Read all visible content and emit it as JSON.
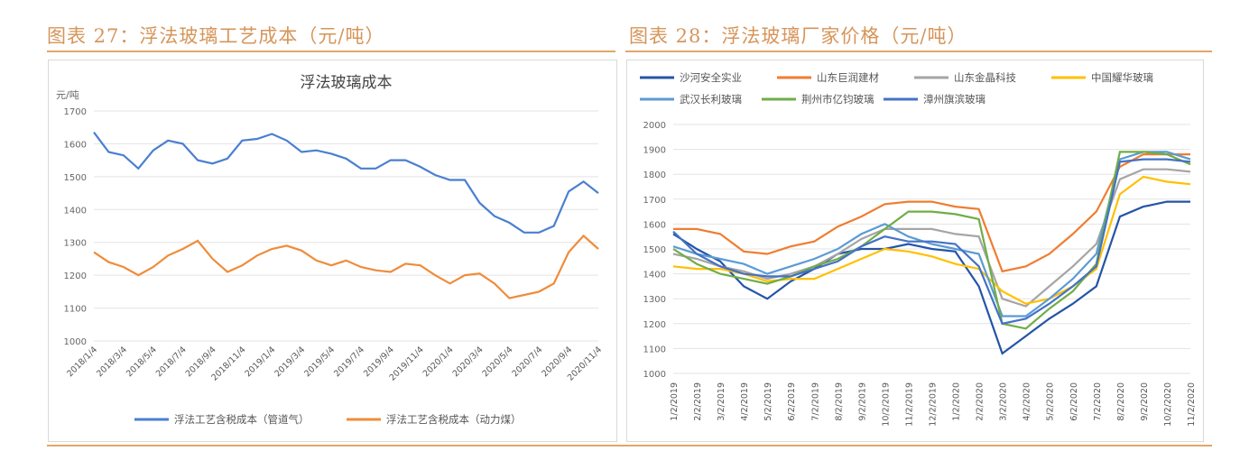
{
  "headers": {
    "left": "图表 27：浮法玻璃工艺成本（元/吨）",
    "right": "图表 28：浮法玻璃厂家价格（元/吨）"
  },
  "colors": {
    "accent": "#d6955a"
  },
  "chart_data": [
    {
      "type": "line",
      "title": "浮法玻璃成本",
      "ylabel": "元/吨",
      "ylim": [
        1000,
        1700
      ],
      "yticks": [
        1000,
        1100,
        1200,
        1300,
        1400,
        1500,
        1600,
        1700
      ],
      "grid": true,
      "legend": "bottom",
      "x": [
        "2018/1/4",
        "2018/2/4",
        "2018/3/4",
        "2018/4/4",
        "2018/5/4",
        "2018/6/4",
        "2018/7/4",
        "2018/8/4",
        "2018/9/4",
        "2018/10/4",
        "2018/11/4",
        "2018/12/4",
        "2019/1/4",
        "2019/2/4",
        "2019/3/4",
        "2019/4/4",
        "2019/5/4",
        "2019/6/4",
        "2019/7/4",
        "2019/8/4",
        "2019/9/4",
        "2019/10/4",
        "2019/11/4",
        "2019/12/4",
        "2020/1/4",
        "2020/2/4",
        "2020/3/4",
        "2020/4/4",
        "2020/5/4",
        "2020/6/4",
        "2020/7/4",
        "2020/8/4",
        "2020/9/4",
        "2020/10/4",
        "2020/11/4"
      ],
      "xtick_labels": [
        "2018/1/4",
        "2018/3/4",
        "2018/5/4",
        "2018/7/4",
        "2018/9/4",
        "2018/11/4",
        "2019/1/4",
        "2019/3/4",
        "2019/5/4",
        "2019/7/4",
        "2019/9/4",
        "2019/11/4",
        "2020/1/4",
        "2020/3/4",
        "2020/5/4",
        "2020/7/4",
        "2020/9/4",
        "2020/11/4"
      ],
      "series": [
        {
          "name": "浮法工艺含税成本（管道气）",
          "color": "#4a7fd0",
          "values": [
            1635,
            1575,
            1565,
            1525,
            1580,
            1610,
            1600,
            1550,
            1540,
            1555,
            1610,
            1615,
            1630,
            1610,
            1575,
            1580,
            1570,
            1555,
            1525,
            1525,
            1550,
            1550,
            1530,
            1505,
            1490,
            1490,
            1420,
            1380,
            1360,
            1330,
            1330,
            1350,
            1455,
            1485,
            1450
          ]
        },
        {
          "name": "浮法工艺含税成本（动力煤）",
          "color": "#ef8c3a",
          "values": [
            1270,
            1240,
            1225,
            1200,
            1225,
            1260,
            1280,
            1305,
            1250,
            1210,
            1230,
            1260,
            1280,
            1290,
            1275,
            1245,
            1230,
            1245,
            1225,
            1215,
            1210,
            1235,
            1230,
            1200,
            1175,
            1200,
            1205,
            1175,
            1130,
            1140,
            1150,
            1175,
            1270,
            1320,
            1280
          ]
        }
      ]
    },
    {
      "type": "line",
      "title": "",
      "ylim": [
        1000,
        2000
      ],
      "yticks": [
        1000,
        1100,
        1200,
        1300,
        1400,
        1500,
        1600,
        1700,
        1800,
        1900,
        2000
      ],
      "grid": true,
      "legend": "top",
      "x": [
        "1/2/2019",
        "2/2/2019",
        "3/2/2019",
        "4/2/2019",
        "5/2/2019",
        "6/2/2019",
        "7/2/2019",
        "8/2/2019",
        "9/2/2019",
        "10/2/2019",
        "11/2/2019",
        "12/2/2019",
        "1/2/2020",
        "2/2/2020",
        "3/2/2020",
        "4/2/2020",
        "5/2/2020",
        "6/2/2020",
        "7/2/2020",
        "8/2/2020",
        "9/2/2020",
        "10/2/2020",
        "11/2/2020"
      ],
      "xtick_labels": [
        "1/2/2019",
        "2/2/2019",
        "3/2/2019",
        "4/2/2019",
        "5/2/2019",
        "6/2/2019",
        "7/2/2019",
        "8/2/2019",
        "9/2/2019",
        "10/2/2019",
        "11/2/2019",
        "12/2/2019",
        "1/2/2020",
        "2/2/2020",
        "3/2/2020",
        "4/2/2020",
        "5/2/2020",
        "6/2/2020",
        "7/2/2020",
        "8/2/2020",
        "9/2/2020",
        "10/2/2020",
        "11/2/2020"
      ],
      "series": [
        {
          "name": "沙河安全实业",
          "color": "#2454a6",
          "values": [
            1560,
            1500,
            1450,
            1350,
            1300,
            1370,
            1420,
            1480,
            1500,
            1500,
            1520,
            1500,
            1490,
            1350,
            1080,
            1150,
            1220,
            1280,
            1350,
            1630,
            1670,
            1690,
            1690
          ]
        },
        {
          "name": "山东巨润建材",
          "color": "#ef7d31",
          "values": [
            1580,
            1580,
            1560,
            1490,
            1480,
            1510,
            1530,
            1590,
            1630,
            1680,
            1690,
            1690,
            1670,
            1660,
            1410,
            1430,
            1480,
            1560,
            1650,
            1830,
            1880,
            1880,
            1880
          ]
        },
        {
          "name": "山东金晶科技",
          "color": "#a5a5a5",
          "values": [
            1480,
            1460,
            1430,
            1410,
            1380,
            1400,
            1430,
            1480,
            1540,
            1580,
            1580,
            1580,
            1560,
            1550,
            1300,
            1270,
            1350,
            1430,
            1520,
            1780,
            1820,
            1820,
            1810
          ]
        },
        {
          "name": "中国耀华玻璃",
          "color": "#ffc000",
          "values": [
            1430,
            1420,
            1420,
            1400,
            1370,
            1380,
            1380,
            1420,
            1460,
            1500,
            1490,
            1470,
            1440,
            1420,
            1330,
            1280,
            1300,
            1350,
            1420,
            1720,
            1790,
            1770,
            1760
          ]
        },
        {
          "name": "武汉长利玻璃",
          "color": "#5b9bd5",
          "values": [
            1510,
            1480,
            1460,
            1440,
            1400,
            1430,
            1460,
            1500,
            1560,
            1600,
            1550,
            1520,
            1500,
            1480,
            1230,
            1230,
            1300,
            1380,
            1480,
            1860,
            1890,
            1890,
            1860
          ]
        },
        {
          "name": "荆州市亿钧玻璃",
          "color": "#70ad47",
          "values": [
            1500,
            1440,
            1400,
            1380,
            1360,
            1390,
            1430,
            1460,
            1510,
            1580,
            1650,
            1650,
            1640,
            1620,
            1200,
            1180,
            1260,
            1330,
            1440,
            1890,
            1890,
            1880,
            1840
          ]
        },
        {
          "name": "漳州旗滨玻璃",
          "color": "#4472c4",
          "values": [
            1570,
            1480,
            1430,
            1400,
            1390,
            1390,
            1420,
            1450,
            1510,
            1550,
            1530,
            1530,
            1520,
            1430,
            1200,
            1220,
            1280,
            1350,
            1430,
            1850,
            1860,
            1860,
            1850
          ]
        }
      ]
    }
  ]
}
